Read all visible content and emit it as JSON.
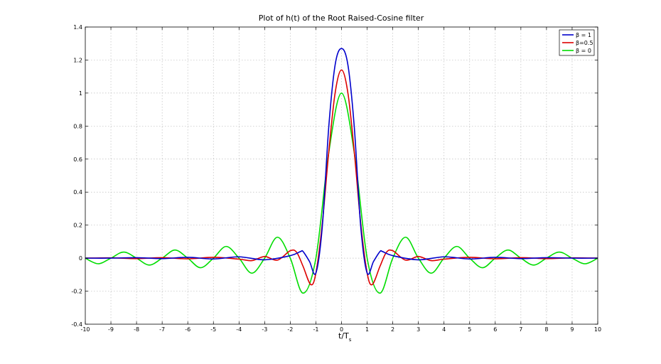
{
  "chart_data": {
    "type": "line",
    "title": "Plot of h(t) of the Root Raised-Cosine filter",
    "xlabel_main": "t/T",
    "xlabel_sub": "s",
    "ylabel": "",
    "xlim": [
      -10,
      10
    ],
    "ylim": [
      -0.4,
      1.4
    ],
    "xticks": [
      "-10",
      "-9",
      "-8",
      "-7",
      "-6",
      "-5",
      "-4",
      "-3",
      "-2",
      "-1",
      "0",
      "1",
      "2",
      "3",
      "4",
      "5",
      "6",
      "7",
      "8",
      "9",
      "10"
    ],
    "yticks": [
      "-0.4",
      "-0.2",
      "0",
      "0.2",
      "0.4",
      "0.6",
      "0.8",
      "1",
      "1.2",
      "1.4"
    ],
    "grid": true,
    "legend_position": "top-right",
    "series": [
      {
        "name": "β = 1",
        "color": "#0000cc",
        "x": [
          -10,
          -9,
          -8,
          -7,
          -6,
          -5,
          -4,
          -3,
          -2,
          -1.6,
          -1.5,
          -1.25,
          -1,
          -0.75,
          -0.5,
          -0.25,
          0,
          0.25,
          0.5,
          0.75,
          1,
          1.25,
          1.5,
          1.6,
          2,
          3,
          4,
          5,
          6,
          7,
          8,
          9,
          10
        ],
        "y": [
          0,
          0,
          0.003,
          -0.003,
          0.005,
          -0.005,
          0.008,
          -0.01,
          0.015,
          0.04,
          0.04,
          -0.02,
          -0.09,
          0.19,
          0.79,
          1.17,
          1.27,
          1.17,
          0.79,
          0.19,
          -0.09,
          -0.02,
          0.04,
          0.04,
          0.015,
          -0.01,
          0.008,
          -0.005,
          0.005,
          -0.003,
          0.003,
          0,
          0
        ]
      },
      {
        "name": "β=0.5",
        "color": "#dd0000",
        "x": [
          -10,
          -9,
          -8,
          -7,
          -6,
          -5,
          -4,
          -3.5,
          -3,
          -2.5,
          -2,
          -1.75,
          -1.5,
          -1.2,
          -1,
          -0.75,
          -0.5,
          -0.25,
          0,
          0.25,
          0.5,
          0.75,
          1,
          1.2,
          1.5,
          1.75,
          2,
          2.5,
          3,
          3.5,
          4,
          5,
          6,
          7,
          8,
          9,
          10
        ],
        "y": [
          0,
          0.002,
          -0.003,
          0.003,
          -0.004,
          0.005,
          -0.006,
          -0.015,
          0.01,
          -0.012,
          0.045,
          0.035,
          -0.05,
          -0.16,
          -0.09,
          0.21,
          0.64,
          1.0,
          1.14,
          1.0,
          0.64,
          0.21,
          -0.09,
          -0.16,
          -0.05,
          0.035,
          0.045,
          -0.012,
          0.01,
          -0.015,
          -0.006,
          0.005,
          -0.004,
          0.003,
          -0.003,
          0.002,
          0
        ]
      },
      {
        "name": "β = 0",
        "color": "#00dd00",
        "x": [
          -10,
          -9.5,
          -9,
          -8.5,
          -8,
          -7.5,
          -7,
          -6.5,
          -6,
          -5.5,
          -5,
          -4.5,
          -4,
          -3.5,
          -3,
          -2.5,
          -2,
          -1.5,
          -1,
          -0.5,
          0,
          0.5,
          1,
          1.5,
          2,
          2.5,
          3,
          3.5,
          4,
          4.5,
          5,
          5.5,
          6,
          6.5,
          7,
          7.5,
          8,
          8.5,
          9,
          9.5,
          10
        ],
        "y": [
          0,
          -0.034,
          0,
          0.037,
          0,
          -0.042,
          0,
          0.049,
          0,
          -0.058,
          0,
          0.071,
          0,
          -0.091,
          0,
          0.127,
          0,
          -0.212,
          0,
          0.637,
          1.0,
          0.637,
          0,
          -0.212,
          0,
          0.127,
          0,
          -0.091,
          0,
          0.071,
          0,
          -0.058,
          0,
          0.049,
          0,
          -0.042,
          0,
          0.037,
          0,
          -0.034,
          0
        ]
      }
    ]
  }
}
